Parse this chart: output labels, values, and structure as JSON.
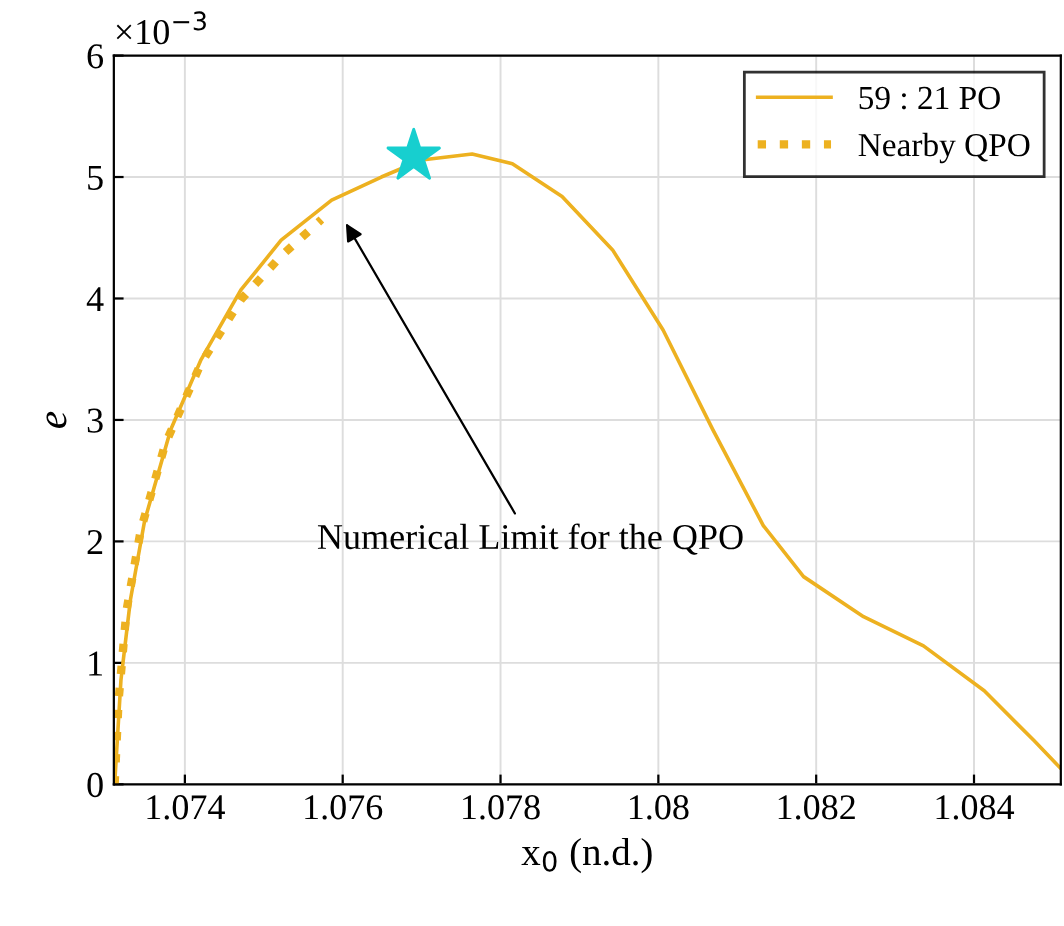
{
  "chart_data": {
    "type": "line",
    "xlabel": "x$_{0}$ (n.d.)",
    "ylabel": "e",
    "xlim": [
      1.0731,
      1.0851
    ],
    "ylim": [
      0,
      6
    ],
    "xticks": [
      1.074,
      1.076,
      1.078,
      1.08,
      1.082,
      1.084
    ],
    "yticks": [
      0,
      1,
      2,
      3,
      4,
      5,
      6
    ],
    "grid": true,
    "legend": "top right",
    "series": [
      {
        "name": "59 : 21 PO",
        "color": "#edb120",
        "line_style": "solid",
        "x": [
          1.07311,
          1.07319,
          1.07331,
          1.07349,
          1.07382,
          1.0742,
          1.07471,
          1.07522,
          1.07586,
          1.07649,
          1.077,
          1.07764,
          1.07815,
          1.07878,
          1.07942,
          1.08006,
          1.08069,
          1.08133,
          1.08184,
          1.0826,
          1.08336,
          1.08413,
          1.08476,
          1.0851
        ],
        "values": [
          0,
          0.86,
          1.52,
          2.17,
          2.92,
          3.49,
          4.07,
          4.48,
          4.81,
          5.0,
          5.14,
          5.19,
          5.11,
          4.84,
          4.4,
          3.74,
          2.92,
          2.13,
          1.71,
          1.38,
          1.14,
          0.77,
          0.36,
          0.13
        ]
      },
      {
        "name": "Nearby QPO",
        "color": "#edb120",
        "line_style": "dotted",
        "x": [
          1.07311,
          1.07316,
          1.07326,
          1.07344,
          1.07375,
          1.0742,
          1.07471,
          1.07522,
          1.07573
        ],
        "values": [
          0,
          0.69,
          1.43,
          2.09,
          2.8,
          3.46,
          3.99,
          4.35,
          4.65
        ]
      },
      {
        "type": "scatter",
        "marker": "star",
        "color": "#17cfcf",
        "x": [
          1.0769
        ],
        "values": [
          5.17
        ]
      }
    ],
    "annotations": [
      "×10$^{−3}$",
      "Numerical Limit for the QPO"
    ]
  }
}
